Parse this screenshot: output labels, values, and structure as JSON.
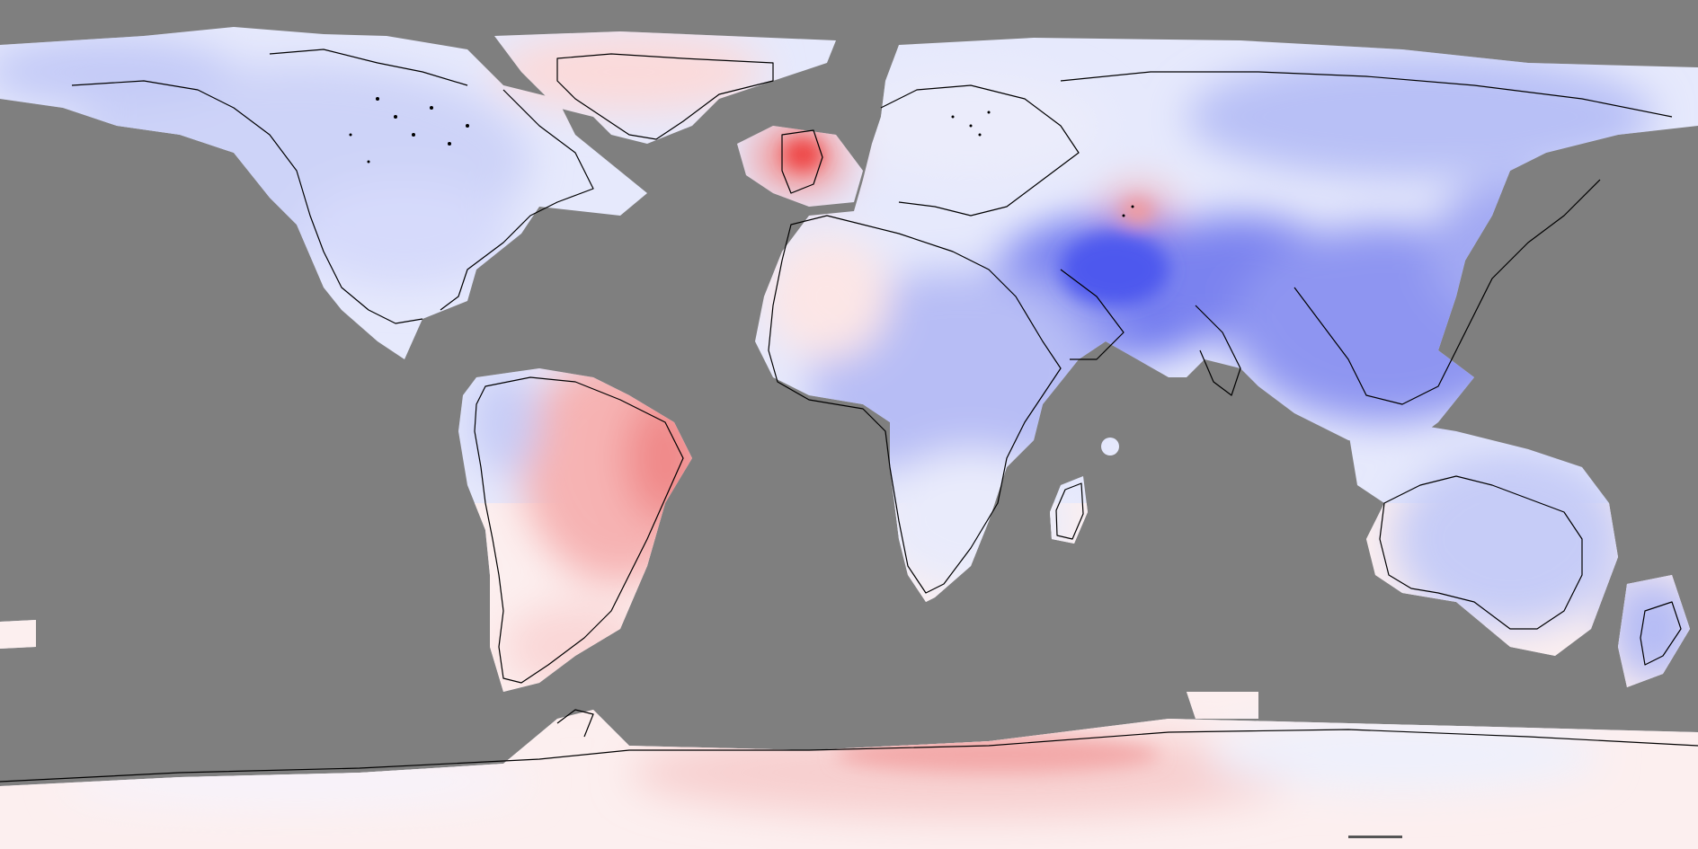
{
  "map": {
    "projection": "equirectangular",
    "ocean_color": "#7f7f7f",
    "color_scale": {
      "negative": "#3c46f0",
      "neutral": "#fdf7f7",
      "positive": "#ef2d2d"
    }
  }
}
